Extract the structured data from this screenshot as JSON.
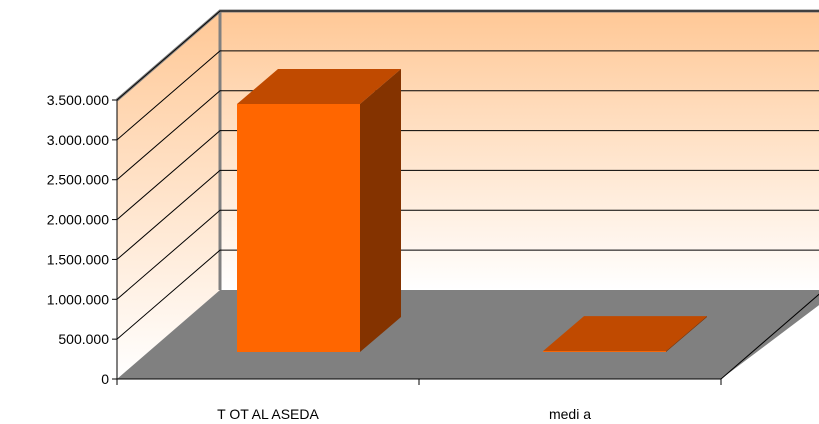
{
  "chart_data": {
    "type": "bar",
    "style": "3d-column",
    "categories": [
      "TOTAL ASEDA",
      "media"
    ],
    "category_labels": [
      "T OT AL ASEDA",
      "medi a"
    ],
    "values": [
      3450000,
      350000
    ],
    "ylim": [
      0,
      3500000
    ],
    "yticks": [
      0,
      500000,
      1000000,
      1500000,
      2000000,
      2500000,
      3000000,
      3500000
    ],
    "ytick_labels": [
      "0",
      "500.000",
      "1.000.000",
      "1.500.000",
      "2.000.000",
      "2.500.000",
      "3.000.000",
      "3.500.000"
    ],
    "grid": true,
    "legend": "none",
    "title": "",
    "xlabel": "",
    "ylabel": "",
    "colors": {
      "bar_front": "#ff6600",
      "bar_top": "#c04a00",
      "bar_side": "#843300",
      "floor": "#808080",
      "wall_top": "#ffc896",
      "wall_bottom": "#ffffff",
      "lines": "#000000"
    }
  }
}
